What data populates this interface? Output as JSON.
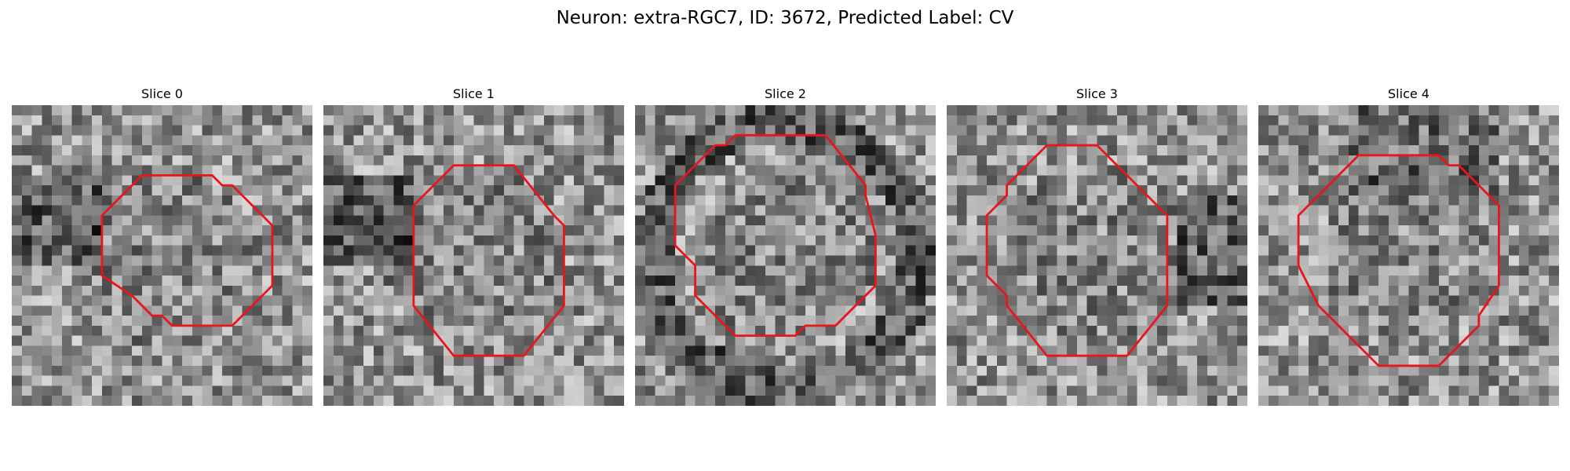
{
  "figure": {
    "title": "Neuron: extra-RGC7, ID: 3672, Predicted Label: CV"
  },
  "style": {
    "outline_color": "#e8161b",
    "colormap": "gray"
  },
  "slices": [
    {
      "title": "Slice 0",
      "seed": 11,
      "dark_region": "left",
      "contour": [
        [
          13,
          7
        ],
        [
          20,
          7
        ],
        [
          21,
          8
        ],
        [
          22,
          8
        ],
        [
          25,
          11
        ],
        [
          26,
          12
        ],
        [
          26,
          18
        ],
        [
          25,
          19
        ],
        [
          22,
          22
        ],
        [
          16,
          22
        ],
        [
          15,
          21
        ],
        [
          14,
          21
        ],
        [
          12,
          19
        ],
        [
          9,
          17
        ],
        [
          9,
          11
        ]
      ]
    },
    {
      "title": "Slice 1",
      "seed": 23,
      "dark_region": "left",
      "contour": [
        [
          13,
          6
        ],
        [
          19,
          6
        ],
        [
          23,
          11
        ],
        [
          24,
          12
        ],
        [
          24,
          20
        ],
        [
          20,
          25
        ],
        [
          13,
          25
        ],
        [
          9,
          20
        ],
        [
          9,
          10
        ]
      ]
    },
    {
      "title": "Slice 2",
      "seed": 37,
      "dark_region": "ring",
      "contour": [
        [
          10,
          3
        ],
        [
          19,
          3
        ],
        [
          23,
          8
        ],
        [
          23,
          9
        ],
        [
          24,
          13
        ],
        [
          24,
          18
        ],
        [
          20,
          22
        ],
        [
          17,
          22
        ],
        [
          16,
          23
        ],
        [
          10,
          23
        ],
        [
          8,
          21
        ],
        [
          6,
          19
        ],
        [
          6,
          16
        ],
        [
          4,
          14
        ],
        [
          4,
          8
        ],
        [
          8,
          4
        ],
        [
          9,
          4
        ]
      ]
    },
    {
      "title": "Slice 3",
      "seed": 53,
      "dark_region": "right",
      "contour": [
        [
          10,
          4
        ],
        [
          15,
          4
        ],
        [
          16,
          5
        ],
        [
          22,
          11
        ],
        [
          22,
          20
        ],
        [
          18,
          25
        ],
        [
          10,
          25
        ],
        [
          6,
          20
        ],
        [
          6,
          19
        ],
        [
          4,
          17
        ],
        [
          4,
          11
        ],
        [
          6,
          9
        ],
        [
          6,
          8
        ]
      ]
    },
    {
      "title": "Slice 4",
      "seed": 71,
      "dark_region": "top",
      "contour": [
        [
          10,
          5
        ],
        [
          18,
          5
        ],
        [
          19,
          6
        ],
        [
          20,
          6
        ],
        [
          22,
          8
        ],
        [
          24,
          10
        ],
        [
          24,
          18
        ],
        [
          22,
          21
        ],
        [
          22,
          22
        ],
        [
          18,
          26
        ],
        [
          12,
          26
        ],
        [
          8,
          22
        ],
        [
          6,
          20
        ],
        [
          5,
          18
        ],
        [
          4,
          16
        ],
        [
          4,
          11
        ],
        [
          9,
          6
        ]
      ]
    }
  ]
}
